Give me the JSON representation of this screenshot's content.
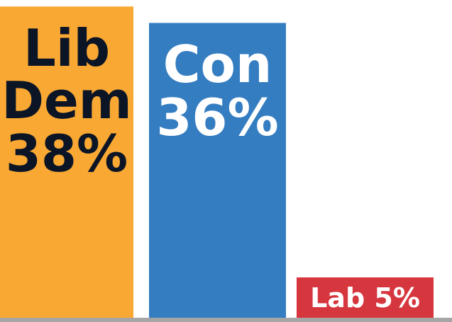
{
  "chart_data": {
    "type": "bar",
    "categories": [
      "Lib Dem",
      "Con",
      "Lab"
    ],
    "values": [
      38,
      36,
      5
    ],
    "unit": "%",
    "labels": [
      [
        "Lib",
        "Dem",
        "38%"
      ],
      [
        "Con",
        "36%"
      ],
      [
        "Lab 5%"
      ]
    ],
    "colors": [
      "#f9a833",
      "#347dc1",
      "#d6363e"
    ],
    "label_colors": [
      "#0b1526",
      "#ffffff",
      "#ffffff"
    ],
    "ylim": [
      0,
      40
    ],
    "grid": false,
    "legend": "none"
  }
}
